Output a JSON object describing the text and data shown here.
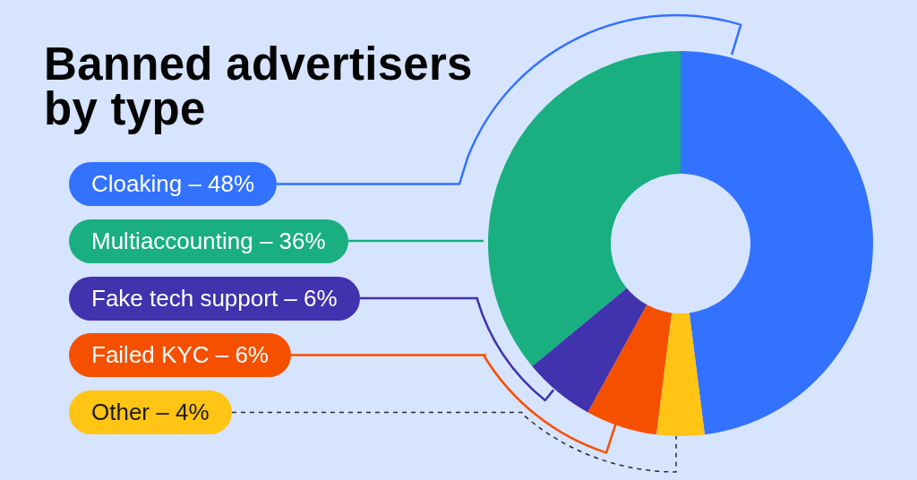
{
  "chart_data": {
    "type": "donut",
    "title": "Banned advertisers by type",
    "categories": [
      "Cloaking",
      "Multiaccounting",
      "Fake tech support",
      "Failed KYC",
      "Other"
    ],
    "values": [
      48,
      36,
      6,
      6,
      4
    ],
    "colors": [
      "#3372fe",
      "#19af80",
      "#4132ae",
      "#f55000",
      "#ffc414"
    ],
    "value_labels": [
      "48%",
      "36%",
      "6%",
      "6%",
      "4%"
    ]
  }
}
